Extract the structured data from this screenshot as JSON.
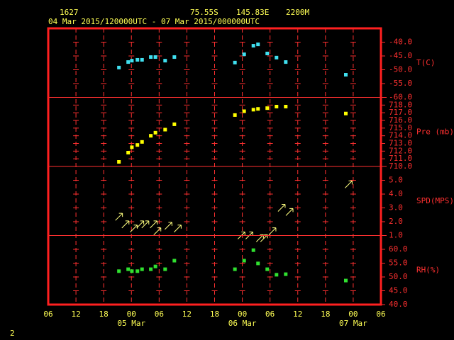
{
  "header": {
    "station": "1627",
    "lat": "75.55S",
    "lon": "145.83E",
    "elev": "2200M",
    "range": "04 Mar 2015/120000UTC - 07 Mar 2015/000000UTC"
  },
  "footer": "2",
  "x_axis": {
    "xlim": [
      6,
      78
    ],
    "xticks": [
      {
        "value": 6,
        "label": "06"
      },
      {
        "value": 12,
        "label": "12"
      },
      {
        "value": 18,
        "label": "18"
      },
      {
        "value": 24,
        "label": "00"
      },
      {
        "value": 30,
        "label": "06"
      },
      {
        "value": 36,
        "label": "12"
      },
      {
        "value": 42,
        "label": "18"
      },
      {
        "value": 48,
        "label": "00"
      },
      {
        "value": 54,
        "label": "06"
      },
      {
        "value": 60,
        "label": "12"
      },
      {
        "value": 66,
        "label": "18"
      },
      {
        "value": 72,
        "label": "00"
      },
      {
        "value": 78,
        "label": "06"
      }
    ],
    "date_labels": [
      {
        "value": 24,
        "label": "05 Mar"
      },
      {
        "value": 48,
        "label": "06 Mar"
      },
      {
        "value": 72,
        "label": "07 Mar"
      }
    ]
  },
  "chart_data": [
    {
      "type": "scatter",
      "ylabel": "T(C)",
      "color": "#40e0f0",
      "ylim": [
        -60,
        -35
      ],
      "yticks": [
        {
          "value": -40,
          "label": "-40.0"
        },
        {
          "value": -45,
          "label": "-45.0"
        },
        {
          "value": -50,
          "label": "-50.0"
        },
        {
          "value": -55,
          "label": "-55.0"
        },
        {
          "value": -60,
          "label": "-60.0"
        }
      ],
      "x": [
        21.3,
        23.3,
        24.1,
        25.3,
        26.3,
        28.2,
        29.2,
        31.3,
        33.3,
        46.4,
        48.4,
        50.4,
        51.4,
        53.4,
        55.4,
        57.4,
        70.4
      ],
      "values": [
        -49.2,
        -47.2,
        -46.7,
        -46.4,
        -46.4,
        -45.4,
        -45.4,
        -46.7,
        -45.4,
        -47.4,
        -44.4,
        -41.3,
        -40.8,
        -44.1,
        -45.6,
        -47.2,
        -51.8
      ]
    },
    {
      "type": "scatter",
      "ylabel": "Pre (mb)",
      "color": "#ffff00",
      "ylim": [
        710,
        719
      ],
      "yticks": [
        {
          "value": 710,
          "label": "710.0"
        },
        {
          "value": 711,
          "label": "711.0"
        },
        {
          "value": 712,
          "label": "712.0"
        },
        {
          "value": 713,
          "label": "713.0"
        },
        {
          "value": 714,
          "label": "714.0"
        },
        {
          "value": 715,
          "label": "715.0"
        },
        {
          "value": 716,
          "label": "716.0"
        },
        {
          "value": 717,
          "label": "717.0"
        },
        {
          "value": 718,
          "label": "718.0"
        }
      ],
      "x": [
        21.3,
        23.3,
        24.1,
        25.3,
        26.3,
        28.2,
        29.2,
        31.3,
        33.3,
        46.4,
        48.4,
        50.4,
        51.4,
        53.4,
        55.4,
        57.4,
        70.4
      ],
      "values": [
        710.6,
        711.8,
        712.5,
        712.8,
        713.2,
        714.0,
        714.4,
        714.8,
        715.5,
        716.7,
        717.2,
        717.4,
        717.5,
        717.6,
        717.8,
        717.8,
        716.9
      ]
    },
    {
      "type": "arrow",
      "ylabel": "SPD(MPS)",
      "color": "#ffff80",
      "ylim": [
        1,
        6
      ],
      "yticks": [
        {
          "value": 1,
          "label": "1.0"
        },
        {
          "value": 2,
          "label": "2.0"
        },
        {
          "value": 3,
          "label": "3.0"
        },
        {
          "value": 4,
          "label": "4.0"
        },
        {
          "value": 5,
          "label": "5.0"
        }
      ],
      "x": [
        21.3,
        22.7,
        24.5,
        25.9,
        27.0,
        28.8,
        29.6,
        32.0,
        34.0,
        47.8,
        49.5,
        51.8,
        52.7,
        54.5,
        56.5,
        58.2,
        71.0
      ],
      "values": [
        2.35,
        1.8,
        1.5,
        1.8,
        1.8,
        1.8,
        1.3,
        1.7,
        1.5,
        1.0,
        1.0,
        0.8,
        0.8,
        1.3,
        3.0,
        2.7,
        4.7
      ]
    },
    {
      "type": "scatter",
      "ylabel": "RH(%)",
      "color": "#30e030",
      "ylim": [
        40,
        65
      ],
      "yticks": [
        {
          "value": 40,
          "label": "40.0"
        },
        {
          "value": 45,
          "label": "45.0"
        },
        {
          "value": 50,
          "label": "50.0"
        },
        {
          "value": 55,
          "label": "55.0"
        },
        {
          "value": 60,
          "label": "60.0"
        }
      ],
      "x": [
        21.3,
        23.3,
        24.1,
        25.3,
        26.3,
        28.2,
        29.2,
        31.3,
        33.3,
        46.4,
        48.4,
        50.4,
        51.4,
        53.4,
        55.4,
        57.4,
        70.4
      ],
      "values": [
        52.1,
        52.8,
        52.1,
        52.1,
        52.8,
        52.8,
        53.8,
        52.8,
        55.9,
        52.8,
        55.9,
        59.7,
        54.9,
        52.8,
        50.8,
        51.0,
        48.7
      ]
    }
  ]
}
